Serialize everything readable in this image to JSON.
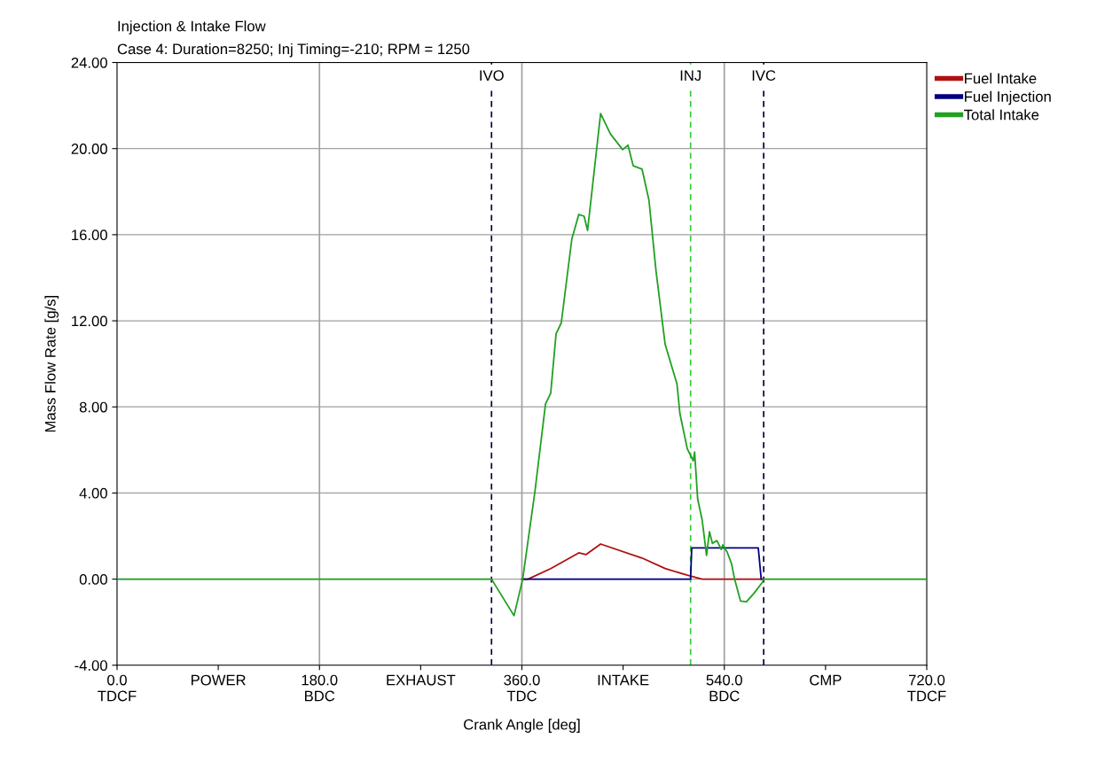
{
  "chart_data": {
    "type": "line",
    "title": "Injection & Intake Flow",
    "subtitle": "Case 4: Duration=8250; Inj Timing=-210; RPM = 1250",
    "xlabel": "Crank Angle [deg]",
    "ylabel": "Mass Flow Rate [g/s]",
    "xlim": [
      0,
      720
    ],
    "ylim": [
      -4,
      24
    ],
    "xticks": [
      {
        "value": 0,
        "label": "0.0\nTDCF"
      },
      {
        "value": 90,
        "label": "POWER"
      },
      {
        "value": 180,
        "label": "180.0\nBDC"
      },
      {
        "value": 270,
        "label": "EXHAUST"
      },
      {
        "value": 360,
        "label": "360.0\nTDC"
      },
      {
        "value": 450,
        "label": "INTAKE"
      },
      {
        "value": 540,
        "label": "540.0\nBDC"
      },
      {
        "value": 630,
        "label": "CMP"
      },
      {
        "value": 720,
        "label": "720.0\nTDCF"
      }
    ],
    "yticks": [
      {
        "value": -4,
        "label": "-4.00"
      },
      {
        "value": 0,
        "label": "0.00"
      },
      {
        "value": 4,
        "label": "4.00"
      },
      {
        "value": 8,
        "label": "8.00"
      },
      {
        "value": 12,
        "label": "12.00"
      },
      {
        "value": 16,
        "label": "16.00"
      },
      {
        "value": 20,
        "label": "20.00"
      },
      {
        "value": 24,
        "label": "24.00"
      }
    ],
    "grid": "y",
    "legend": "top right",
    "marker": "none",
    "line_style": "solid",
    "ref_lines": [
      {
        "axis": "x",
        "value": 180,
        "label": null,
        "color": "#a0a0a0",
        "line_style": "solid"
      },
      {
        "axis": "x",
        "value": 360,
        "label": null,
        "color": "#a0a0a0",
        "line_style": "solid"
      },
      {
        "axis": "x",
        "value": 540,
        "label": null,
        "color": "#a0a0a0",
        "line_style": "solid"
      },
      {
        "axis": "x",
        "value": 333,
        "label": "IVO",
        "color": "#000040",
        "line_style": "dashed"
      },
      {
        "axis": "x",
        "value": 510,
        "label": "INJ",
        "color": "#33cc33",
        "line_style": "dashed"
      },
      {
        "axis": "x",
        "value": 575,
        "label": "IVC",
        "color": "#000040",
        "line_style": "dashed"
      }
    ],
    "series": [
      {
        "name": "Fuel Intake",
        "color": "#b01010",
        "x": [
          360,
          365.4,
          385.6,
          410.6,
          416.9,
          430,
          466.8,
          487.4,
          507.1,
          520.3,
          575
        ],
        "values": [
          0,
          0,
          0.49,
          1.22,
          1.14,
          1.63,
          0.98,
          0.49,
          0.18,
          0,
          0
        ]
      },
      {
        "name": "Fuel Injection",
        "color": "#000080",
        "x": [
          360.7,
          510,
          511,
          570.2,
          572.8
        ],
        "values": [
          0,
          0,
          1.45,
          1.45,
          0
        ]
      },
      {
        "name": "Total Intake",
        "color": "#22a022",
        "x": [
          0,
          333,
          353,
          360.7,
          371.6,
          381,
          385.6,
          390.4,
          395,
          404.4,
          410.6,
          415.3,
          418.4,
          430,
          438.7,
          449.6,
          454.3,
          459,
          466.8,
          473,
          479.3,
          487.4,
          497.9,
          500.5,
          507.1,
          512.4,
          513.6,
          516.3,
          520.3,
          524.2,
          526.8,
          529.4,
          533.4,
          537.3,
          538.6,
          542.6,
          546.5,
          549.1,
          554.4,
          559.7,
          566.2,
          574.1,
          575,
          720
        ],
        "values": [
          0,
          0,
          -1.7,
          0,
          4.07,
          8.14,
          8.63,
          11.4,
          11.9,
          15.8,
          16.94,
          16.86,
          16.2,
          21.63,
          20.68,
          19.95,
          20.16,
          19.2,
          19.05,
          17.6,
          14.3,
          10.9,
          9.07,
          7.69,
          6.05,
          5.5,
          5.9,
          3.72,
          2.75,
          1.1,
          2.2,
          1.66,
          1.79,
          1.38,
          1.59,
          1.25,
          0.7,
          0.01,
          -1.02,
          -1.05,
          -0.67,
          -0.13,
          0,
          0
        ]
      }
    ]
  }
}
